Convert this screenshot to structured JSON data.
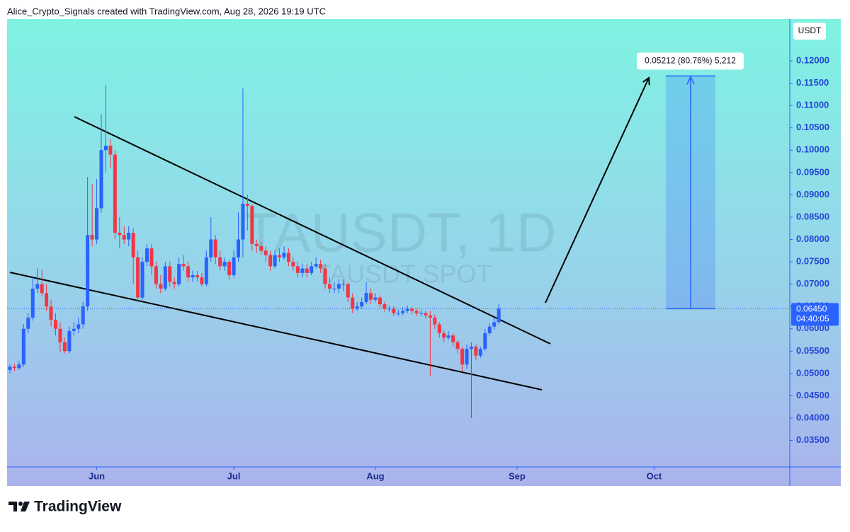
{
  "header": {
    "attribution": "Alice_Crypto_Signals created with TradingView.com, Aug 28, 2026 19:19 UTC"
  },
  "chart_data": {
    "type": "candlestick",
    "title": "TAUSDT, 1D",
    "subtitle": "TAUSDT SPOT",
    "currency": "USDT",
    "up_color": "#2962ff",
    "down_color": "#f23645",
    "ylim": [
      0.02907,
      0.12935
    ],
    "xlim": [
      -0.62,
      170.7
    ],
    "yticks": [
      {
        "value": 0.035,
        "label": "0.03500"
      },
      {
        "value": 0.04,
        "label": "0.04000"
      },
      {
        "value": 0.045,
        "label": "0.04500"
      },
      {
        "value": 0.05,
        "label": "0.05000"
      },
      {
        "value": 0.055,
        "label": "0.05500"
      },
      {
        "value": 0.06,
        "label": "0.06000"
      },
      {
        "value": 0.065,
        "label": "0.06500"
      },
      {
        "value": 0.07,
        "label": "0.07000"
      },
      {
        "value": 0.075,
        "label": "0.07500"
      },
      {
        "value": 0.08,
        "label": "0.08000"
      },
      {
        "value": 0.085,
        "label": "0.08500"
      },
      {
        "value": 0.09,
        "label": "0.09000"
      },
      {
        "value": 0.095,
        "label": "0.09500"
      },
      {
        "value": 0.1,
        "label": "0.10000"
      },
      {
        "value": 0.105,
        "label": "0.10500"
      },
      {
        "value": 0.11,
        "label": "0.11000"
      },
      {
        "value": 0.115,
        "label": "0.11500"
      },
      {
        "value": 0.12,
        "label": "0.12000"
      }
    ],
    "xticks": [
      {
        "value": 19,
        "label": "Jun"
      },
      {
        "value": 49,
        "label": "Jul"
      },
      {
        "value": 80,
        "label": "Aug"
      },
      {
        "value": 111,
        "label": "Sep"
      },
      {
        "value": 141,
        "label": "Oct"
      }
    ],
    "current_price": {
      "value": 0.0645,
      "label": "0.06450",
      "countdown": "04:40:05"
    },
    "measure": {
      "from": 0.0645,
      "to": 0.11662,
      "label": "0.05212 (80.76%) 5,212"
    },
    "candles": [
      [
        0.0508,
        0.052,
        0.05,
        0.0515
      ],
      [
        0.0515,
        0.0522,
        0.0505,
        0.0512
      ],
      [
        0.0512,
        0.0528,
        0.0508,
        0.052
      ],
      [
        0.052,
        0.061,
        0.0515,
        0.06
      ],
      [
        0.06,
        0.0635,
        0.059,
        0.0625
      ],
      [
        0.0625,
        0.0715,
        0.0618,
        0.069
      ],
      [
        0.069,
        0.0735,
        0.068,
        0.07
      ],
      [
        0.07,
        0.0732,
        0.0672,
        0.068
      ],
      [
        0.068,
        0.07,
        0.064,
        0.065
      ],
      [
        0.065,
        0.0665,
        0.0605,
        0.062
      ],
      [
        0.062,
        0.0635,
        0.0585,
        0.06
      ],
      [
        0.06,
        0.0615,
        0.0548,
        0.057
      ],
      [
        0.057,
        0.058,
        0.0545,
        0.055
      ],
      [
        0.055,
        0.0605,
        0.0545,
        0.0595
      ],
      [
        0.0595,
        0.0615,
        0.0585,
        0.06
      ],
      [
        0.06,
        0.0625,
        0.059,
        0.061
      ],
      [
        0.061,
        0.066,
        0.06,
        0.065
      ],
      [
        0.065,
        0.094,
        0.064,
        0.081
      ],
      [
        0.081,
        0.0925,
        0.0785,
        0.08
      ],
      [
        0.08,
        0.0935,
        0.079,
        0.087
      ],
      [
        0.087,
        0.108,
        0.086,
        0.1
      ],
      [
        0.1,
        0.1146,
        0.095,
        0.101
      ],
      [
        0.101,
        0.1025,
        0.096,
        0.099
      ],
      [
        0.099,
        0.1,
        0.08,
        0.0815
      ],
      [
        0.0815,
        0.085,
        0.078,
        0.081
      ],
      [
        0.081,
        0.083,
        0.079,
        0.08
      ],
      [
        0.08,
        0.083,
        0.0785,
        0.0815
      ],
      [
        0.0815,
        0.0825,
        0.07,
        0.076
      ],
      [
        0.076,
        0.0775,
        0.066,
        0.067
      ],
      [
        0.067,
        0.076,
        0.0665,
        0.075
      ],
      [
        0.075,
        0.079,
        0.074,
        0.078
      ],
      [
        0.078,
        0.079,
        0.072,
        0.074
      ],
      [
        0.074,
        0.075,
        0.069,
        0.07
      ],
      [
        0.07,
        0.072,
        0.068,
        0.069
      ],
      [
        0.069,
        0.075,
        0.0685,
        0.074
      ],
      [
        0.074,
        0.075,
        0.0695,
        0.0705
      ],
      [
        0.0705,
        0.0715,
        0.069,
        0.07
      ],
      [
        0.07,
        0.076,
        0.0695,
        0.0745
      ],
      [
        0.0745,
        0.0765,
        0.073,
        0.074
      ],
      [
        0.074,
        0.075,
        0.0705,
        0.0715
      ],
      [
        0.0715,
        0.073,
        0.0705,
        0.072
      ],
      [
        0.072,
        0.073,
        0.0705,
        0.0715
      ],
      [
        0.0715,
        0.0725,
        0.0695,
        0.07
      ],
      [
        0.07,
        0.0775,
        0.0695,
        0.076
      ],
      [
        0.076,
        0.085,
        0.075,
        0.08
      ],
      [
        0.08,
        0.081,
        0.0745,
        0.076
      ],
      [
        0.076,
        0.0775,
        0.073,
        0.074
      ],
      [
        0.074,
        0.076,
        0.073,
        0.075
      ],
      [
        0.075,
        0.0755,
        0.071,
        0.072
      ],
      [
        0.072,
        0.0775,
        0.0715,
        0.076
      ],
      [
        0.076,
        0.086,
        0.075,
        0.08
      ],
      [
        0.08,
        0.1138,
        0.076,
        0.088
      ],
      [
        0.088,
        0.09,
        0.082,
        0.0875
      ],
      [
        0.0875,
        0.088,
        0.0775,
        0.079
      ],
      [
        0.079,
        0.08,
        0.077,
        0.0785
      ],
      [
        0.0785,
        0.0795,
        0.0765,
        0.0775
      ],
      [
        0.0775,
        0.0785,
        0.075,
        0.0765
      ],
      [
        0.0765,
        0.0775,
        0.073,
        0.074
      ],
      [
        0.074,
        0.0775,
        0.0735,
        0.0765
      ],
      [
        0.0765,
        0.078,
        0.075,
        0.076
      ],
      [
        0.076,
        0.0785,
        0.0755,
        0.077
      ],
      [
        0.077,
        0.078,
        0.074,
        0.075
      ],
      [
        0.075,
        0.076,
        0.073,
        0.074
      ],
      [
        0.074,
        0.075,
        0.0715,
        0.0725
      ],
      [
        0.0725,
        0.0745,
        0.0715,
        0.0735
      ],
      [
        0.0735,
        0.0745,
        0.0715,
        0.0725
      ],
      [
        0.0725,
        0.075,
        0.072,
        0.074
      ],
      [
        0.074,
        0.076,
        0.0735,
        0.0745
      ],
      [
        0.0745,
        0.0755,
        0.0725,
        0.0735
      ],
      [
        0.0735,
        0.0745,
        0.069,
        0.07
      ],
      [
        0.07,
        0.0715,
        0.068,
        0.069
      ],
      [
        0.069,
        0.0705,
        0.068,
        0.069
      ],
      [
        0.069,
        0.071,
        0.068,
        0.07
      ],
      [
        0.07,
        0.071,
        0.0685,
        0.07
      ],
      [
        0.07,
        0.0705,
        0.066,
        0.067
      ],
      [
        0.067,
        0.068,
        0.0635,
        0.0645
      ],
      [
        0.0645,
        0.066,
        0.064,
        0.065
      ],
      [
        0.065,
        0.067,
        0.0645,
        0.066
      ],
      [
        0.066,
        0.0705,
        0.0655,
        0.068
      ],
      [
        0.068,
        0.069,
        0.0655,
        0.0665
      ],
      [
        0.0665,
        0.068,
        0.066,
        0.067
      ],
      [
        0.067,
        0.0675,
        0.0648,
        0.0655
      ],
      [
        0.0655,
        0.066,
        0.0638,
        0.0645
      ],
      [
        0.0645,
        0.0652,
        0.0638,
        0.0645
      ],
      [
        0.0645,
        0.065,
        0.0628,
        0.0635
      ],
      [
        0.0635,
        0.0642,
        0.0628,
        0.0635
      ],
      [
        0.0635,
        0.0648,
        0.063,
        0.064
      ],
      [
        0.064,
        0.0652,
        0.0635,
        0.0645
      ],
      [
        0.0645,
        0.065,
        0.0632,
        0.064
      ],
      [
        0.064,
        0.0645,
        0.0628,
        0.0635
      ],
      [
        0.0635,
        0.0642,
        0.0628,
        0.0635
      ],
      [
        0.0635,
        0.064,
        0.0622,
        0.063
      ],
      [
        0.063,
        0.064,
        0.0495,
        0.0625
      ],
      [
        0.0625,
        0.0632,
        0.06,
        0.061
      ],
      [
        0.061,
        0.0615,
        0.058,
        0.059
      ],
      [
        0.059,
        0.0598,
        0.057,
        0.058
      ],
      [
        0.058,
        0.0595,
        0.0575,
        0.0585
      ],
      [
        0.0585,
        0.059,
        0.056,
        0.057
      ],
      [
        0.057,
        0.0575,
        0.0545,
        0.0555
      ],
      [
        0.0555,
        0.056,
        0.0505,
        0.052
      ],
      [
        0.052,
        0.0565,
        0.051,
        0.0555
      ],
      [
        0.0555,
        0.057,
        0.04,
        0.056
      ],
      [
        0.056,
        0.0565,
        0.053,
        0.054
      ],
      [
        0.054,
        0.056,
        0.0535,
        0.0555
      ],
      [
        0.0555,
        0.06,
        0.055,
        0.059
      ],
      [
        0.059,
        0.0612,
        0.0585,
        0.0605
      ],
      [
        0.0605,
        0.0625,
        0.0598,
        0.0615
      ],
      [
        0.0615,
        0.0655,
        0.061,
        0.0645
      ]
    ]
  },
  "footer": {
    "brand": "TradingView"
  }
}
